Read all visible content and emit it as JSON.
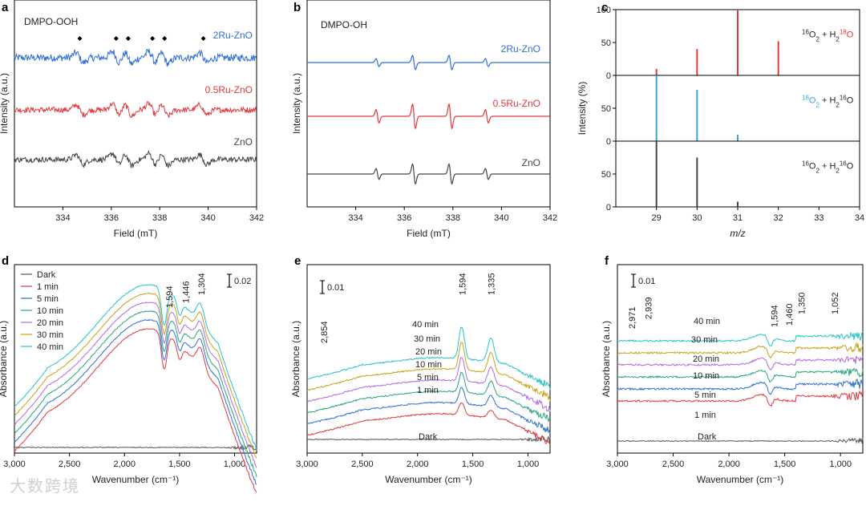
{
  "watermark": "大数跨境",
  "chart_data": [
    {
      "panel": "a",
      "type": "line",
      "title": "DMPO-OOH",
      "xlabel": "Field (mT)",
      "ylabel": "Intensity (a.u.)",
      "xlim": [
        332,
        342
      ],
      "xticks": [
        334,
        336,
        338,
        340,
        342
      ],
      "series": [
        {
          "name": "2Ru-ZnO",
          "color": "#2f6fd6",
          "peaks_mT": [
            334.7,
            336.2,
            336.7,
            337.7,
            338.2,
            339.8
          ],
          "style": "noisy_esr"
        },
        {
          "name": "0.5Ru-ZnO",
          "color": "#e0393e",
          "peaks_mT": [
            334.7,
            336.2,
            336.7,
            337.7,
            338.2,
            339.8
          ],
          "style": "noisy_esr"
        },
        {
          "name": "ZnO",
          "color": "#454545",
          "peaks_mT": [
            334.7,
            336.2,
            336.7,
            337.7,
            338.2,
            339.8
          ],
          "style": "noisy_esr"
        }
      ],
      "markers_mT": [
        334.7,
        336.2,
        336.7,
        337.7,
        338.2,
        339.8
      ]
    },
    {
      "panel": "b",
      "type": "line",
      "title": "DMPO-OH",
      "xlabel": "Field (mT)",
      "ylabel": "Intensity (a.u.)",
      "xlim": [
        332,
        342
      ],
      "xticks": [
        334,
        336,
        338,
        340,
        342
      ],
      "series": [
        {
          "name": "2Ru-ZnO",
          "color": "#2f6fd6",
          "peaks_mT": [
            334.9,
            336.4,
            337.9,
            339.4
          ],
          "rel_amp": [
            0.55,
            1.0,
            1.0,
            0.55
          ]
        },
        {
          "name": "0.5Ru-ZnO",
          "color": "#e0393e",
          "peaks_mT": [
            334.9,
            336.4,
            337.9,
            339.4
          ],
          "rel_amp": [
            0.55,
            1.0,
            1.0,
            0.55
          ]
        },
        {
          "name": "ZnO",
          "color": "#454545",
          "peaks_mT": [
            334.9,
            336.4,
            337.9,
            339.4
          ],
          "rel_amp": [
            0.55,
            1.0,
            1.0,
            0.55
          ]
        }
      ]
    },
    {
      "panel": "c",
      "type": "bar",
      "xlabel": "m/z",
      "ylabel": "Intensity (%)",
      "xlim": [
        28,
        34
      ],
      "xticks": [
        29,
        30,
        31,
        32,
        33,
        34
      ],
      "yticks": [
        0,
        50,
        100
      ],
      "subplots": [
        {
          "label_main": "O",
          "label_parts": [
            "16",
            "O",
            "2",
            " + H",
            "2",
            "18",
            "O"
          ],
          "color": "#e0393e",
          "label_color": "#e0393e",
          "bars": [
            {
              "x": 29,
              "y": 10
            },
            {
              "x": 30,
              "y": 40
            },
            {
              "x": 31,
              "y": 100
            },
            {
              "x": 32,
              "y": 52
            }
          ]
        },
        {
          "label_parts": [
            "18",
            "O",
            "2",
            " + H",
            "2",
            "16",
            "O"
          ],
          "color": "#3ba3d6",
          "label_color": "#3ba3d6",
          "bars": [
            {
              "x": 29,
              "y": 100
            },
            {
              "x": 30,
              "y": 78
            },
            {
              "x": 31,
              "y": 10
            }
          ]
        },
        {
          "label_parts": [
            "16",
            "O",
            "2",
            " + H",
            "2",
            "16",
            "O"
          ],
          "color": "#444444",
          "label_color": "#222222",
          "bars": [
            {
              "x": 29,
              "y": 100
            },
            {
              "x": 30,
              "y": 75
            },
            {
              "x": 31,
              "y": 8
            }
          ]
        }
      ]
    },
    {
      "panel": "d",
      "type": "line",
      "xlabel": "Wavenumber (cm⁻¹)",
      "ylabel": "Absorbance (a.u.)",
      "xlim": [
        3000,
        800
      ],
      "xticks": [
        3000,
        2500,
        2000,
        1500,
        1000
      ],
      "xticklabels": [
        "3,000",
        "2,500",
        "2,000",
        "1,500",
        "1,000"
      ],
      "scalebar": "0.02",
      "annotations": [
        {
          "x": 1594,
          "text": "1,594"
        },
        {
          "x": 1446,
          "text": "1,446"
        },
        {
          "x": 1304,
          "text": "1,304"
        }
      ],
      "series": [
        {
          "name": "Dark",
          "color": "#555555"
        },
        {
          "name": "1 min",
          "color": "#e0393e"
        },
        {
          "name": "5 min",
          "color": "#2f6fd6"
        },
        {
          "name": "10 min",
          "color": "#27a67a"
        },
        {
          "name": "20 min",
          "color": "#b26be0"
        },
        {
          "name": "30 min",
          "color": "#c9a216"
        },
        {
          "name": "40 min",
          "color": "#27c3c9"
        }
      ]
    },
    {
      "panel": "e",
      "type": "line",
      "xlabel": "Wavenumber (cm⁻¹)",
      "ylabel": "Absorbance (a.u.)",
      "xlim": [
        3000,
        800
      ],
      "xticks": [
        3000,
        2500,
        2000,
        1500,
        1000
      ],
      "xticklabels": [
        "3,000",
        "2,500",
        "2,000",
        "1,500",
        "1,000"
      ],
      "scalebar": "0.01",
      "annotations": [
        {
          "x": 2854,
          "text": "2,854"
        },
        {
          "x": 1594,
          "text": "1,594"
        },
        {
          "x": 1335,
          "text": "1,335"
        }
      ],
      "series": [
        {
          "name": "Dark",
          "color": "#555555"
        },
        {
          "name": "1 min",
          "color": "#e0393e"
        },
        {
          "name": "5 min",
          "color": "#2f6fd6"
        },
        {
          "name": "10 min",
          "color": "#27a67a"
        },
        {
          "name": "20 min",
          "color": "#b26be0"
        },
        {
          "name": "30 min",
          "color": "#c9a216"
        },
        {
          "name": "40 min",
          "color": "#27c3c9"
        }
      ]
    },
    {
      "panel": "f",
      "type": "line",
      "xlabel": "Wavenumber (cm⁻¹)",
      "ylabel": "Absorbance (a.u.)",
      "xlim": [
        3000,
        800
      ],
      "xticks": [
        3000,
        2500,
        2000,
        1500,
        1000
      ],
      "xticklabels": [
        "3,000",
        "2,500",
        "2,000",
        "1,500",
        "1,000"
      ],
      "scalebar": "0.01",
      "annotations": [
        {
          "x": 2971,
          "text": "2,971"
        },
        {
          "x": 2939,
          "text": "2,939"
        },
        {
          "x": 1594,
          "text": "1,594"
        },
        {
          "x": 1460,
          "text": "1,460"
        },
        {
          "x": 1350,
          "text": "1,350"
        },
        {
          "x": 1052,
          "text": "1,052"
        }
      ],
      "series": [
        {
          "name": "Dark",
          "color": "#555555"
        },
        {
          "name": "1 min",
          "color": "#e0393e"
        },
        {
          "name": "5 min",
          "color": "#2f6fd6"
        },
        {
          "name": "10 min",
          "color": "#27a67a"
        },
        {
          "name": "20 min",
          "color": "#b26be0"
        },
        {
          "name": "30 min",
          "color": "#c9a216"
        },
        {
          "name": "40 min",
          "color": "#27c3c9"
        }
      ]
    }
  ]
}
